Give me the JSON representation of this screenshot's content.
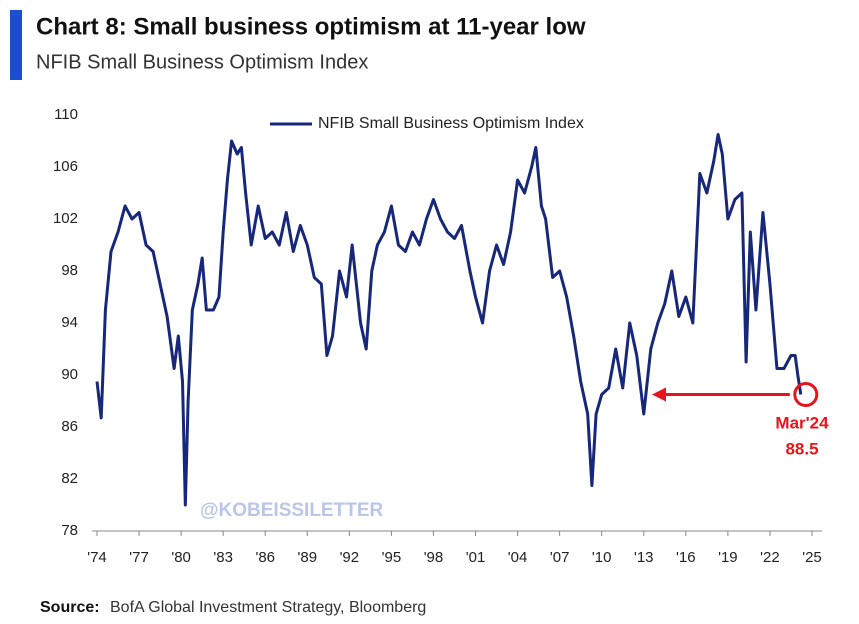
{
  "chart_data": {
    "type": "line",
    "title": "Chart 8: Small business optimism at 11-year low",
    "subtitle": "NFIB Small Business Optimism Index",
    "series": [
      {
        "name": "NFIB Small Business Optimism Index",
        "color": "#17277a",
        "x": [
          1974.0,
          1974.3,
          1974.6,
          1975.0,
          1975.5,
          1976.0,
          1976.5,
          1977.0,
          1977.5,
          1978.0,
          1978.5,
          1979.0,
          1979.5,
          1979.8,
          1980.1,
          1980.3,
          1980.5,
          1980.8,
          1981.2,
          1981.5,
          1981.8,
          1982.3,
          1982.7,
          1983.0,
          1983.3,
          1983.6,
          1984.0,
          1984.3,
          1984.6,
          1985.0,
          1985.5,
          1986.0,
          1986.5,
          1987.0,
          1987.5,
          1988.0,
          1988.5,
          1989.0,
          1989.5,
          1990.0,
          1990.4,
          1990.8,
          1991.3,
          1991.8,
          1992.2,
          1992.8,
          1993.2,
          1993.6,
          1994.0,
          1994.5,
          1995.0,
          1995.5,
          1996.0,
          1996.5,
          1997.0,
          1997.5,
          1998.0,
          1998.5,
          1999.0,
          1999.5,
          2000.0,
          2000.6,
          2001.0,
          2001.5,
          2002.0,
          2002.5,
          2003.0,
          2003.5,
          2004.0,
          2004.5,
          2005.0,
          2005.3,
          2005.7,
          2006.0,
          2006.5,
          2007.0,
          2007.5,
          2008.0,
          2008.5,
          2009.0,
          2009.3,
          2009.6,
          2010.0,
          2010.5,
          2011.0,
          2011.5,
          2012.0,
          2012.5,
          2013.0,
          2013.5,
          2014.0,
          2014.5,
          2015.0,
          2015.5,
          2016.0,
          2016.5,
          2017.0,
          2017.5,
          2018.0,
          2018.3,
          2018.6,
          2019.0,
          2019.5,
          2020.0,
          2020.3,
          2020.6,
          2021.0,
          2021.5,
          2022.0,
          2022.5,
          2023.0,
          2023.5,
          2023.8,
          2024.0,
          2024.2
        ],
        "values": [
          89.5,
          86.7,
          95,
          99.5,
          101,
          103,
          102,
          102.5,
          100,
          99.5,
          97,
          94.5,
          90.5,
          93,
          89.5,
          80,
          88,
          95,
          97,
          99,
          95,
          95,
          96,
          101,
          105,
          108,
          107,
          107.5,
          104,
          100,
          103,
          100.5,
          101,
          100,
          102.5,
          99.5,
          101.5,
          100,
          97.5,
          97,
          91.5,
          93,
          98,
          96,
          100,
          94,
          92,
          98,
          100,
          101,
          103,
          100,
          99.5,
          101,
          100,
          102,
          103.5,
          102,
          101,
          100.5,
          101.5,
          98,
          96,
          94,
          98,
          100,
          98.5,
          101,
          105,
          104,
          106,
          107.5,
          103,
          102,
          97.5,
          98,
          96,
          93,
          89.5,
          87,
          81.5,
          87,
          88.5,
          89,
          92,
          89,
          94,
          91.5,
          87,
          92,
          94,
          95.5,
          98,
          94.5,
          96,
          94,
          105.5,
          104,
          106.5,
          108.5,
          107,
          102,
          103.5,
          104,
          91,
          101,
          95,
          102.5,
          97,
          90.5,
          90.5,
          91.5,
          91.5,
          89.9,
          88.5
        ]
      }
    ],
    "xlim": [
      1974,
      2025
    ],
    "xticks": [
      {
        "value": 1974,
        "label": "'74"
      },
      {
        "value": 1977,
        "label": "'77"
      },
      {
        "value": 1980,
        "label": "'80"
      },
      {
        "value": 1983,
        "label": "'83"
      },
      {
        "value": 1986,
        "label": "'86"
      },
      {
        "value": 1989,
        "label": "'89"
      },
      {
        "value": 1992,
        "label": "'92"
      },
      {
        "value": 1995,
        "label": "'95"
      },
      {
        "value": 1998,
        "label": "'98"
      },
      {
        "value": 2001,
        "label": "'01"
      },
      {
        "value": 2004,
        "label": "'04"
      },
      {
        "value": 2007,
        "label": "'07"
      },
      {
        "value": 2010,
        "label": "'10"
      },
      {
        "value": 2013,
        "label": "'13"
      },
      {
        "value": 2016,
        "label": "'16"
      },
      {
        "value": 2019,
        "label": "'19"
      },
      {
        "value": 2022,
        "label": "'22"
      },
      {
        "value": 2025,
        "label": "'25"
      }
    ],
    "ylim": [
      78,
      110
    ],
    "yticks": [
      78,
      82,
      86,
      90,
      94,
      98,
      102,
      106,
      110
    ],
    "grid": false,
    "legend": "top",
    "annotation": {
      "label": "Mar'24",
      "value": 88.5,
      "color": "#e8141b"
    },
    "watermark": "@KOBEISSILETTER",
    "source": {
      "label": "Source:",
      "text": "BofA Global Investment Strategy, Bloomberg"
    }
  }
}
